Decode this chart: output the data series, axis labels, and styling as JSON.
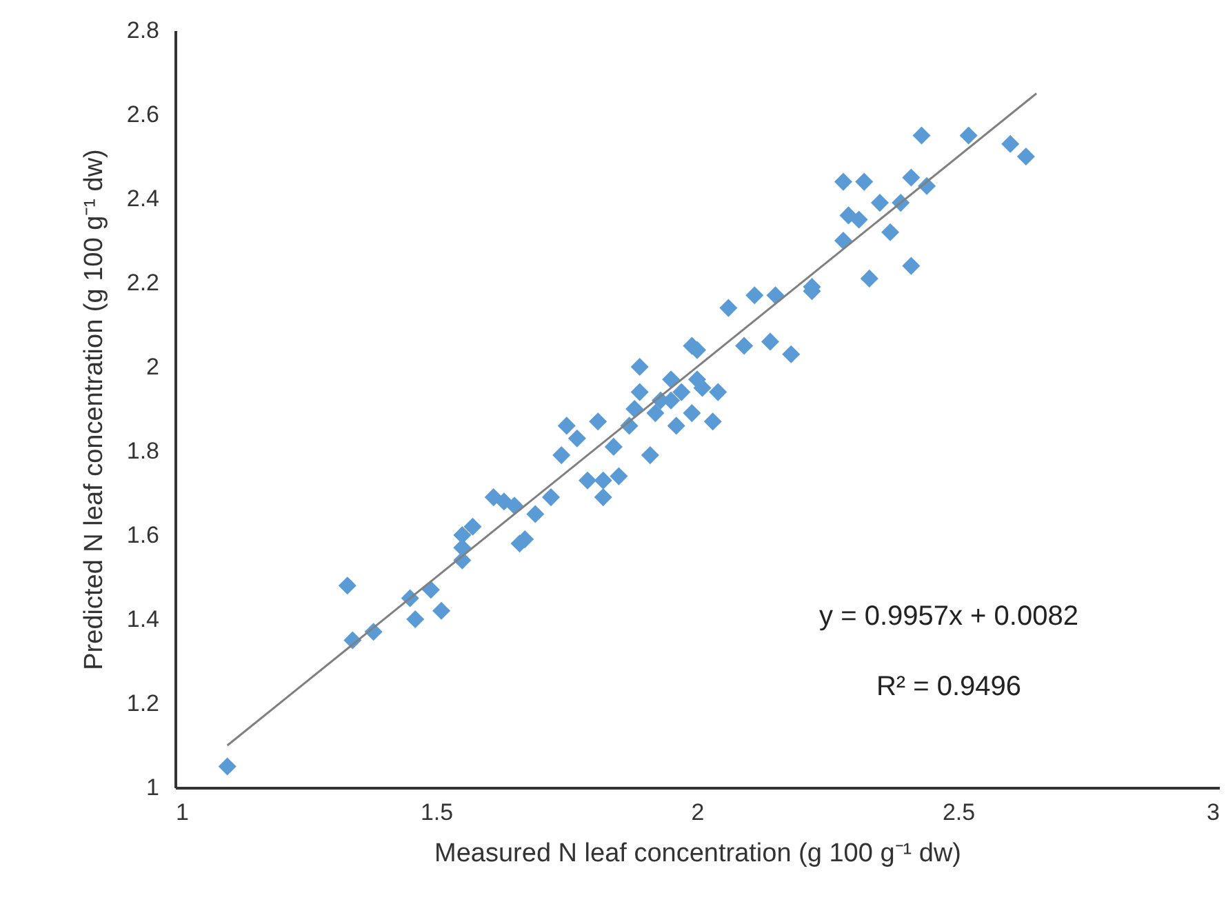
{
  "chart_data": {
    "type": "scatter",
    "xlabel": "Measured N leaf concentration (g 100 g⁻¹ dw)",
    "ylabel": "Predicted N  leaf concentration (g 100 g⁻¹ dw)",
    "xlim": [
      1,
      3
    ],
    "xticks": [
      1,
      1.5,
      2,
      2.5,
      3
    ],
    "ylim": [
      1,
      2.8
    ],
    "yticks": [
      1,
      1.2,
      1.4,
      1.6,
      1.8,
      2,
      2.2,
      2.4,
      2.6,
      2.8
    ],
    "grid": false,
    "marker": "diamond",
    "annotations": [
      "y = 0.9957x + 0.0082",
      "R² = 0.9496"
    ],
    "series": [
      {
        "color": "#5b9bd5",
        "x": [
          1.1,
          1.33,
          1.34,
          1.38,
          1.45,
          1.46,
          1.49,
          1.51,
          1.55,
          1.55,
          1.57,
          1.61,
          1.63,
          1.65,
          1.67,
          1.69,
          1.72,
          1.74,
          1.75,
          1.77,
          1.79,
          1.81,
          1.82,
          1.84,
          1.85,
          1.87,
          1.88,
          1.89,
          1.89,
          1.91,
          1.92,
          1.93,
          1.95,
          1.96,
          1.97,
          1.99,
          2.0,
          2.01,
          2.0,
          2.03,
          2.04,
          2.06,
          2.11,
          2.15,
          2.22,
          2.22,
          1.99,
          2.09,
          2.14,
          2.18,
          2.33,
          2.41,
          2.28,
          2.37,
          2.31,
          2.35,
          2.39,
          2.28,
          2.32,
          2.41,
          2.44,
          2.29,
          2.43,
          2.52,
          2.6,
          2.63,
          1.66,
          1.82,
          1.55,
          1.95
        ],
        "values": [
          1.05,
          1.48,
          1.35,
          1.37,
          1.45,
          1.4,
          1.47,
          1.42,
          1.57,
          1.54,
          1.62,
          1.69,
          1.68,
          1.67,
          1.59,
          1.65,
          1.69,
          1.79,
          1.86,
          1.83,
          1.73,
          1.87,
          1.69,
          1.81,
          1.74,
          1.86,
          1.9,
          2.0,
          1.94,
          1.79,
          1.89,
          1.92,
          1.97,
          1.86,
          1.94,
          1.89,
          1.97,
          1.95,
          2.04,
          1.87,
          1.94,
          2.14,
          2.17,
          2.17,
          2.18,
          2.19,
          2.05,
          2.05,
          2.06,
          2.03,
          2.21,
          2.24,
          2.3,
          2.32,
          2.35,
          2.39,
          2.39,
          2.44,
          2.44,
          2.45,
          2.43,
          2.36,
          2.55,
          2.55,
          2.53,
          2.5,
          1.58,
          1.73,
          1.6,
          1.92
        ]
      },
      {
        "type": "line",
        "marker": "none",
        "color": "#808080",
        "x": [
          1.1,
          2.65
        ],
        "values": [
          1.1,
          2.65
        ]
      }
    ]
  }
}
